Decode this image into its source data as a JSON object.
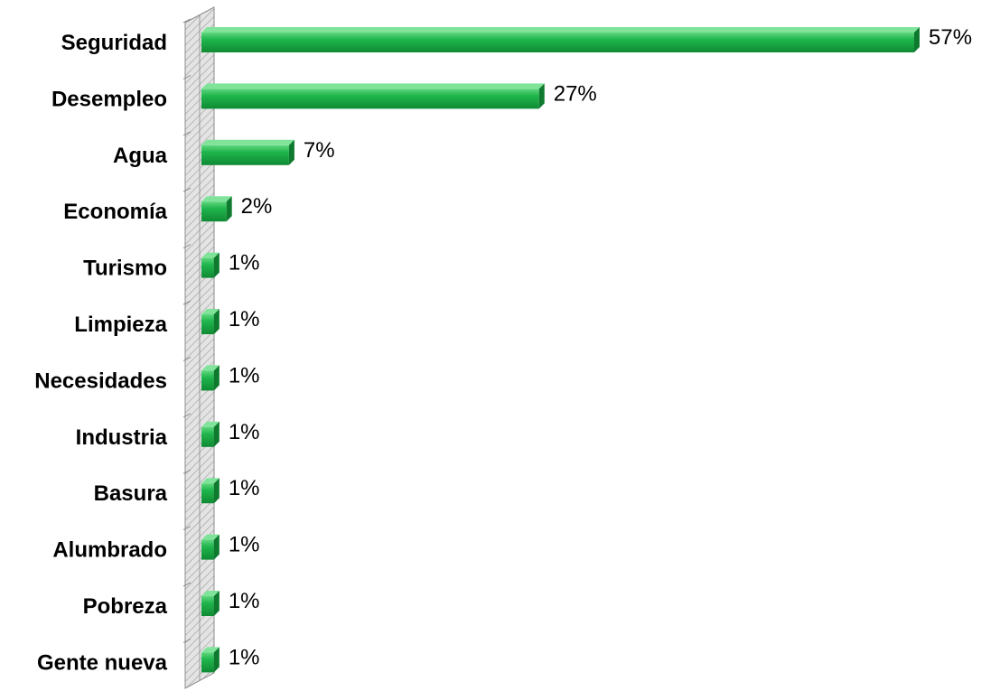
{
  "chart_data": {
    "type": "bar",
    "orientation": "horizontal",
    "categories": [
      "Seguridad",
      "Desempleo",
      "Agua",
      "Economía",
      "Turismo",
      "Limpieza",
      "Necesidades",
      "Industria",
      "Basura",
      "Alumbrado",
      "Pobreza",
      "Gente nueva"
    ],
    "values": [
      57,
      27,
      7,
      2,
      1,
      1,
      1,
      1,
      1,
      1,
      1,
      1
    ],
    "data_labels": [
      "57%",
      "27%",
      "7%",
      "2%",
      "1%",
      "1%",
      "1%",
      "1%",
      "1%",
      "1%",
      "1%",
      "1%"
    ],
    "unit": "%",
    "title": "",
    "xlabel": "",
    "ylabel": "",
    "xlim": [
      0,
      57
    ],
    "grid": false,
    "legend": "none",
    "colors": {
      "bar": "#1db34a",
      "bar_dark": "#0e7a2e",
      "axis_wall": "#d9d9d9"
    }
  }
}
